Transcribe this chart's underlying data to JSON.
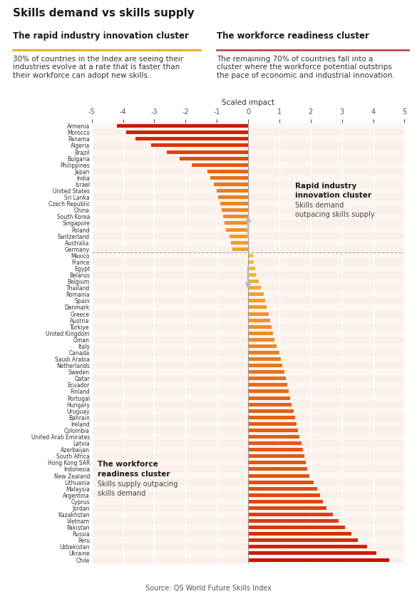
{
  "title": "Skills demand vs skills supply",
  "subtitle_left": "The rapid industry innovation cluster",
  "subtitle_right": "The workforce readiness cluster",
  "underline_left_color": "#F5A623",
  "underline_right_color": "#D0454C",
  "text_left": "30% of countries in the Index are seeing their\nindustries evolve at a rate that is faster than\ntheir workforce can adopt new skills.",
  "text_right": "The remaining 70% of countries fall into a\ncluster where the workforce potential outstrips\nthe pace of economic and industrial innovation.",
  "xlabel": "Scaled impact",
  "source": "Source: QS World Future Skills Index",
  "annotation_left_bold": "Rapid industry\ninnovation cluster",
  "annotation_left_sub": "Skills demand\noutpacing skills supply",
  "annotation_right_bold": "The workforce\nreadiness cluster",
  "annotation_right_sub": "Skills supply outpacing\nskills demand",
  "xlim": [
    -5,
    5
  ],
  "xticks": [
    -5,
    -4,
    -3,
    -2,
    -1,
    0,
    1,
    2,
    3,
    4,
    5
  ],
  "background_chart": "#FDF5F0",
  "background_outer": "#FFFFFF",
  "grid_color": "#FFFFFF",
  "countries": [
    "Armenia",
    "Morocco",
    "Panama",
    "Algeria",
    "Brazil",
    "Bulgaria",
    "Philippines",
    "Japan",
    "India",
    "Israel",
    "United States",
    "Sri Lanka",
    "Czech Republic",
    "China",
    "South Korea",
    "Singapore",
    "Poland",
    "Switzerland",
    "Australia",
    "Germany",
    "Mexico",
    "France",
    "Egypt",
    "Belarus",
    "Belgium",
    "Thailand",
    "Romania",
    "Spain",
    "Denmark",
    "Greece",
    "Austria",
    "Türkiye",
    "United Kingdom",
    "Oman",
    "Italy",
    "Canada",
    "Saudi Arabia",
    "Netherlands",
    "Sweden",
    "Qatar",
    "Ecuador",
    "Finland",
    "Portugal",
    "Hungary",
    "Uruguay",
    "Bahrain",
    "Ireland",
    "Colombia",
    "United Arab Emirates",
    "Latvia",
    "Azerbaijan",
    "South Africa",
    "Hong Kong SAR",
    "Indonesia",
    "New Zealand",
    "Lithuania",
    "Malaysia",
    "Argentina",
    "Cyprus",
    "Jordan",
    "Kazakhstan",
    "Vietnam",
    "Pakistan",
    "Russia",
    "Peru",
    "Uzbekistan",
    "Ukraine",
    "Chile"
  ],
  "values": [
    -4.2,
    -3.9,
    -3.6,
    -3.1,
    -2.6,
    -2.2,
    -1.8,
    -1.3,
    -1.2,
    -1.1,
    -1.0,
    -0.95,
    -0.9,
    -0.85,
    -0.8,
    -0.75,
    -0.7,
    -0.6,
    -0.55,
    -0.5,
    0.15,
    0.18,
    0.22,
    0.25,
    0.35,
    0.4,
    0.5,
    0.55,
    0.6,
    0.65,
    0.7,
    0.75,
    0.8,
    0.85,
    0.9,
    1.0,
    1.05,
    1.1,
    1.15,
    1.2,
    1.25,
    1.3,
    1.35,
    1.4,
    1.45,
    1.5,
    1.55,
    1.6,
    1.65,
    1.7,
    1.75,
    1.8,
    1.85,
    1.9,
    1.95,
    2.1,
    2.2,
    2.3,
    2.4,
    2.5,
    2.7,
    2.9,
    3.1,
    3.3,
    3.5,
    3.8,
    4.1,
    4.5
  ],
  "neg_color_start": "#F5C842",
  "neg_color_end": "#E85C20",
  "pos_color_start": "#F5A623",
  "pos_color_end": "#CC2200"
}
